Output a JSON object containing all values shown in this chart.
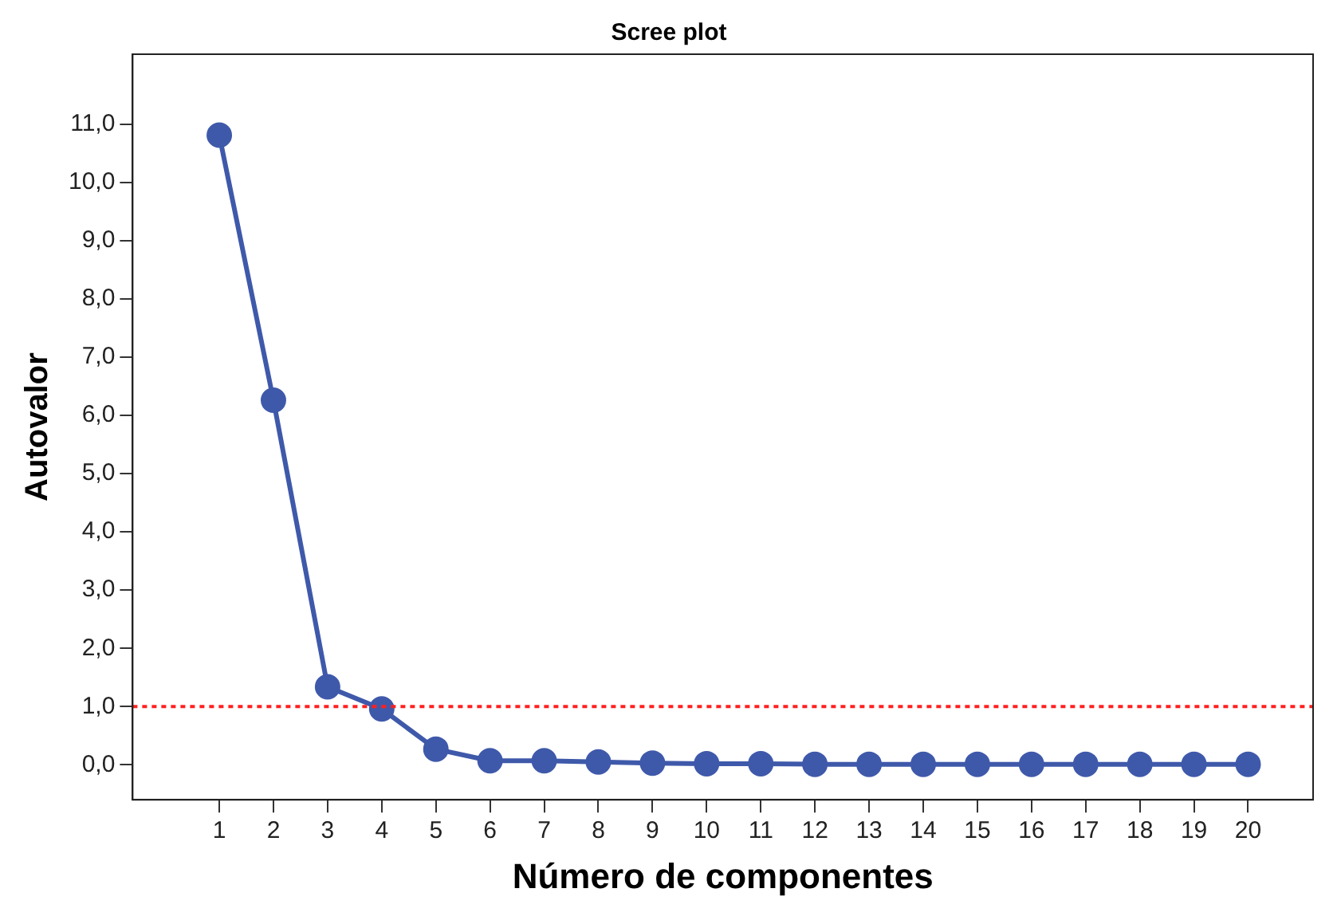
{
  "chart_data": {
    "type": "line",
    "title": "Scree plot",
    "xlabel": "Número de componentes",
    "ylabel": "Autovalor",
    "x": [
      1,
      2,
      3,
      4,
      5,
      6,
      7,
      8,
      9,
      10,
      11,
      12,
      13,
      14,
      15,
      16,
      17,
      18,
      19,
      20
    ],
    "series": [
      {
        "color": "#3f59aa",
        "values": [
          10.81,
          6.26,
          1.34,
          0.96,
          0.27,
          0.07,
          0.07,
          0.05,
          0.03,
          0.02,
          0.02,
          0.01,
          0.01,
          0.01,
          0.01,
          0.01,
          0.01,
          0.01,
          0.01,
          0.01
        ]
      }
    ],
    "xlim": [
      -0.6,
      21.2
    ],
    "xticks": [
      1,
      2,
      3,
      4,
      5,
      6,
      7,
      8,
      9,
      10,
      11,
      12,
      13,
      14,
      15,
      16,
      17,
      18,
      19,
      20
    ],
    "ylim": [
      -0.6,
      12.2
    ],
    "yticks": [
      {
        "value": 0,
        "label": "0,0"
      },
      {
        "value": 1,
        "label": "1,0"
      },
      {
        "value": 2,
        "label": "2,0"
      },
      {
        "value": 3,
        "label": "3,0"
      },
      {
        "value": 4,
        "label": "4,0"
      },
      {
        "value": 5,
        "label": "5,0"
      },
      {
        "value": 6,
        "label": "6,0"
      },
      {
        "value": 7,
        "label": "7,0"
      },
      {
        "value": 8,
        "label": "8,0"
      },
      {
        "value": 9,
        "label": "9,0"
      },
      {
        "value": 10,
        "label": "10,0"
      },
      {
        "value": 11,
        "label": "11,0"
      }
    ],
    "ref_lines": [
      {
        "axis": "y",
        "value": 1,
        "color": "#ff2020",
        "line_style": "dotted"
      }
    ],
    "grid": false,
    "legend": false,
    "marker": "circle",
    "line_style": "solid"
  }
}
